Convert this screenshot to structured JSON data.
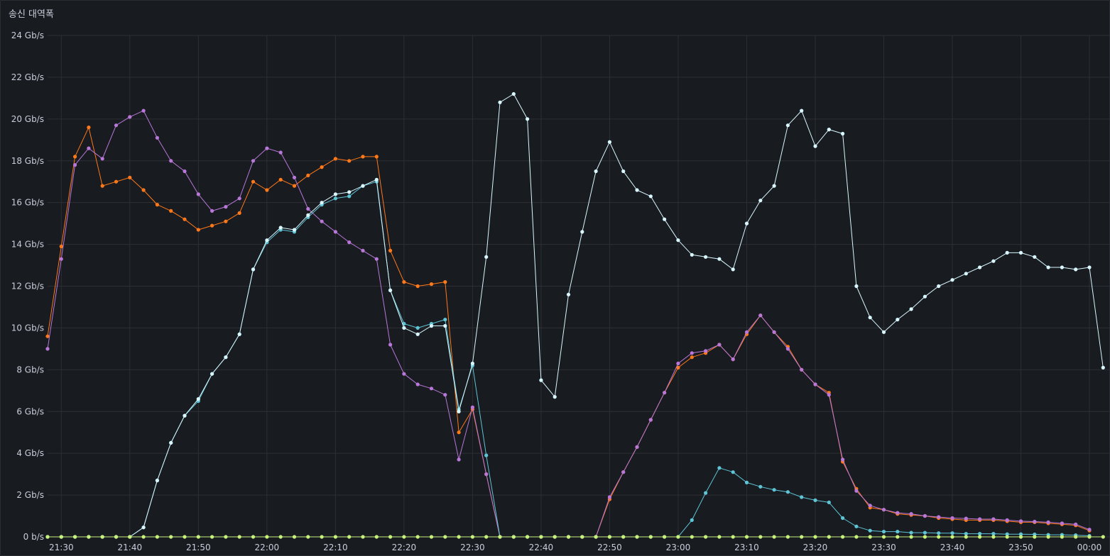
{
  "panel": {
    "title": "송신 대역폭"
  },
  "chart_data": {
    "type": "line",
    "title": "송신 대역폭",
    "xlabel": "",
    "ylabel": "",
    "y_unit": "Gb/s",
    "ylim": [
      0,
      24
    ],
    "y_ticks": [
      {
        "value": 0,
        "label": "0 b/s"
      },
      {
        "value": 2,
        "label": "2 Gb/s"
      },
      {
        "value": 4,
        "label": "4 Gb/s"
      },
      {
        "value": 6,
        "label": "6 Gb/s"
      },
      {
        "value": 8,
        "label": "8 Gb/s"
      },
      {
        "value": 10,
        "label": "10 Gb/s"
      },
      {
        "value": 12,
        "label": "12 Gb/s"
      },
      {
        "value": 14,
        "label": "14 Gb/s"
      },
      {
        "value": 16,
        "label": "16 Gb/s"
      },
      {
        "value": 18,
        "label": "18 Gb/s"
      },
      {
        "value": 20,
        "label": "20 Gb/s"
      },
      {
        "value": 22,
        "label": "22 Gb/s"
      },
      {
        "value": 24,
        "label": "24 Gb/s"
      }
    ],
    "x_ticks": [
      "21:30",
      "21:40",
      "21:50",
      "22:00",
      "22:10",
      "22:20",
      "22:30",
      "22:40",
      "22:50",
      "23:00",
      "23:10",
      "23:20",
      "23:30",
      "23:40",
      "23:50",
      "00:00"
    ],
    "xlim": [
      "21:28",
      "00:03"
    ],
    "grid": true,
    "legend": "none",
    "series": [
      {
        "color": "#ff7819",
        "start": "21:28",
        "values": [
          9.6,
          13.9,
          18.2,
          19.6,
          16.8,
          17.0,
          17.2,
          16.6,
          15.9,
          15.6,
          15.2,
          14.7,
          14.9,
          15.1,
          15.5,
          17.0,
          16.6,
          17.1,
          16.8,
          17.3,
          17.7,
          18.1,
          18.0,
          18.2,
          18.2,
          13.7,
          12.2,
          12.0,
          12.1,
          12.2,
          5.0,
          6.1,
          3.0,
          0,
          0,
          0,
          0,
          0,
          0,
          0,
          0,
          1.8,
          3.1,
          4.3,
          5.6,
          6.9,
          8.1,
          8.6,
          8.8,
          9.2,
          8.5,
          9.7,
          10.6,
          9.8,
          9.1,
          8.0,
          7.3,
          6.9,
          3.6,
          2.3,
          1.4,
          1.3,
          1.1,
          1.05,
          1.0,
          0.9,
          0.85,
          0.8,
          0.8,
          0.8,
          0.75,
          0.7,
          0.7,
          0.65,
          0.6,
          0.55,
          0.3
        ]
      },
      {
        "color": "#b877d9",
        "start": "21:28",
        "values": [
          9.0,
          13.3,
          17.8,
          18.6,
          18.1,
          19.7,
          20.1,
          20.4,
          19.1,
          18.0,
          17.5,
          16.4,
          15.6,
          15.8,
          16.2,
          18.0,
          18.6,
          18.4,
          17.2,
          15.7,
          15.1,
          14.6,
          14.1,
          13.7,
          13.3,
          9.2,
          7.8,
          7.3,
          7.1,
          6.8,
          3.7,
          6.2,
          3.0,
          0,
          0,
          0,
          0,
          0,
          0,
          0,
          0,
          1.9,
          3.1,
          4.3,
          5.6,
          6.9,
          8.3,
          8.8,
          8.9,
          9.2,
          8.5,
          9.8,
          10.6,
          9.8,
          9.0,
          8.0,
          7.3,
          6.8,
          3.7,
          2.2,
          1.5,
          1.3,
          1.15,
          1.1,
          1.0,
          0.95,
          0.9,
          0.88,
          0.85,
          0.85,
          0.8,
          0.75,
          0.73,
          0.7,
          0.65,
          0.6,
          0.35
        ]
      },
      {
        "color": "#5ec4d6",
        "start": "21:28",
        "values": [
          0,
          0,
          0,
          0,
          0,
          0,
          0,
          0.45,
          2.7,
          4.5,
          5.8,
          6.5,
          7.8,
          8.6,
          9.7,
          12.8,
          14.1,
          14.7,
          14.6,
          15.3,
          15.9,
          16.2,
          16.3,
          16.8,
          17.0,
          11.8,
          10.2,
          10.0,
          10.2,
          10.4,
          6.1,
          8.2,
          3.9,
          0,
          0,
          0,
          0,
          0,
          0,
          0,
          0,
          0,
          0,
          0,
          0,
          0,
          0,
          0.8,
          2.1,
          3.3,
          3.1,
          2.6,
          2.4,
          2.25,
          2.15,
          1.9,
          1.75,
          1.65,
          0.9,
          0.5,
          0.3,
          0.25,
          0.25,
          0.2,
          0.2,
          0.18,
          0.18,
          0.15,
          0.15,
          0.15,
          0.13,
          0.13,
          0.12,
          0.1,
          0.1,
          0.08,
          0.05
        ]
      },
      {
        "color": "#d9f7ff",
        "start": "21:28",
        "values": [
          0,
          0,
          0,
          0,
          0,
          0,
          0,
          0.45,
          2.7,
          4.5,
          5.8,
          6.6,
          7.8,
          8.6,
          9.7,
          12.8,
          14.2,
          14.8,
          14.7,
          15.4,
          16.0,
          16.4,
          16.5,
          16.8,
          17.1,
          11.8,
          10.0,
          9.7,
          10.1,
          10.1,
          6.0,
          8.3,
          13.4,
          20.8,
          21.2,
          20.0,
          7.5,
          6.7,
          11.6,
          14.6,
          17.5,
          18.9,
          17.5,
          16.6,
          16.3,
          15.2,
          14.2,
          13.5,
          13.4,
          13.3,
          12.8,
          15.0,
          16.1,
          16.8,
          19.7,
          20.4,
          18.7,
          19.5,
          19.3,
          12.0,
          10.5,
          9.8,
          10.4,
          10.9,
          11.5,
          12.0,
          12.3,
          12.6,
          12.9,
          13.2,
          13.6,
          13.6,
          13.4,
          12.9,
          12.9,
          12.8,
          12.9,
          8.1
        ]
      },
      {
        "color": "#c8f27c",
        "start": "21:28",
        "values": [
          0,
          0,
          0,
          0,
          0,
          0,
          0,
          0,
          0,
          0,
          0,
          0,
          0,
          0,
          0,
          0,
          0,
          0,
          0,
          0,
          0,
          0,
          0,
          0,
          0,
          0,
          0,
          0,
          0,
          0,
          0,
          0,
          0,
          0,
          0,
          0,
          0,
          0,
          0,
          0,
          0,
          0,
          0,
          0,
          0,
          0,
          0,
          0,
          0,
          0,
          0,
          0,
          0,
          0,
          0,
          0,
          0,
          0,
          0,
          0,
          0,
          0,
          0,
          0,
          0,
          0,
          0,
          0,
          0,
          0,
          0,
          0,
          0,
          0,
          0,
          0,
          0,
          0
        ]
      }
    ]
  }
}
